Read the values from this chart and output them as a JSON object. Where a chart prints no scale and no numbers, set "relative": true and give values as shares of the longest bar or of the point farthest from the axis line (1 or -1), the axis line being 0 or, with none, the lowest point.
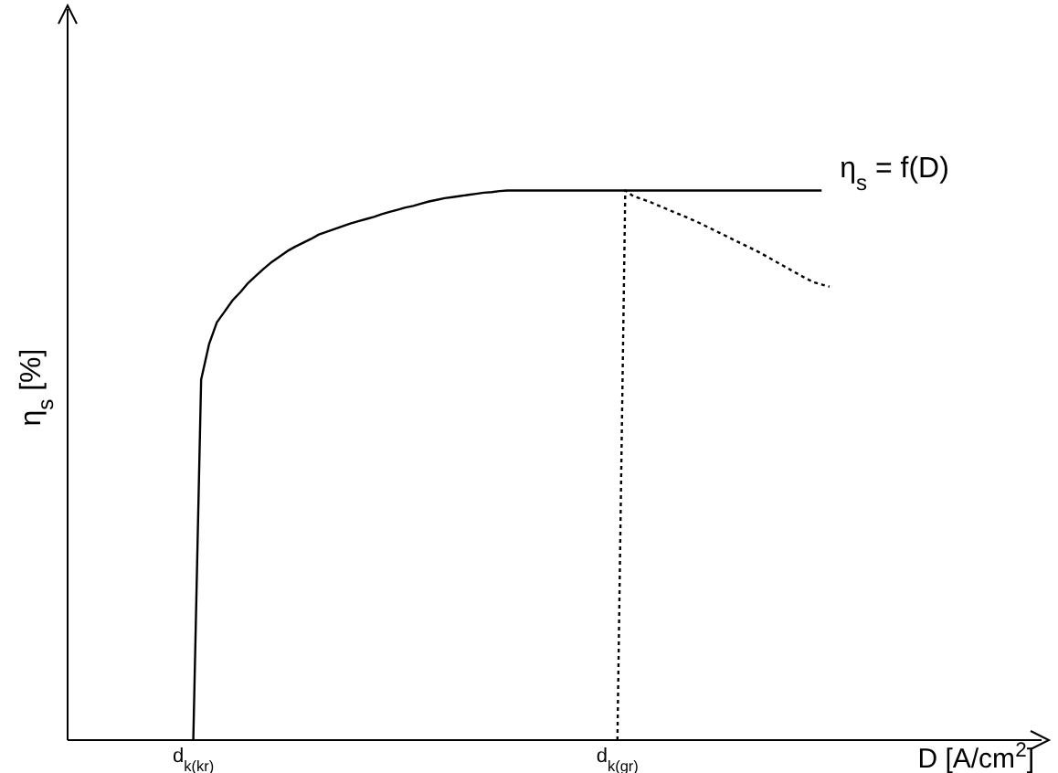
{
  "chart_data": {
    "type": "line",
    "relative": true,
    "xlabel": "D [A/cm$^{2}$]",
    "ylabel": "η$_{s}$  [%]",
    "categories": [
      null,
      null,
      null,
      null,
      null,
      null,
      null,
      null,
      null,
      null,
      null,
      null,
      null,
      null,
      null,
      null,
      "d$_{k(kr)}$",
      null,
      null,
      null,
      null,
      null,
      null,
      null,
      null,
      null,
      null,
      null,
      null,
      null,
      null,
      null,
      null,
      null,
      null,
      null,
      null,
      null,
      null,
      null,
      null,
      null,
      null,
      null,
      null,
      null,
      null,
      null,
      null,
      null,
      null,
      null,
      null,
      null,
      null,
      null,
      null,
      null,
      null,
      null,
      null,
      null,
      null,
      null,
      null,
      null,
      null,
      null,
      null,
      null,
      "d$_{k(gr)}$",
      null,
      null,
      null,
      null,
      null,
      null,
      null,
      null,
      null,
      null,
      null,
      null,
      null,
      null,
      null,
      null,
      null,
      null,
      null,
      null,
      null,
      null,
      null,
      null,
      null,
      null,
      null,
      null,
      null,
      null,
      null,
      null,
      null,
      null,
      null,
      null,
      null,
      null,
      null,
      null,
      null,
      null,
      null,
      null,
      null,
      null,
      null,
      null,
      null,
      null,
      null,
      null,
      null,
      null
    ],
    "series": [
      {
        "color": "#000000",
        "line_style": "solid",
        "values": [
          null,
          null,
          null,
          null,
          null,
          null,
          null,
          null,
          null,
          null,
          null,
          null,
          null,
          null,
          null,
          null,
          0,
          0.656,
          0.72,
          0.76,
          0.78,
          0.8,
          0.815,
          0.832,
          0.845,
          0.858,
          0.87,
          0.88,
          0.89,
          0.898,
          0.905,
          0.912,
          0.92,
          0.925,
          0.93,
          0.935,
          0.94,
          0.944,
          0.948,
          0.952,
          0.957,
          0.961,
          0.965,
          0.969,
          0.972,
          0.976,
          0.98,
          0.983,
          0.986,
          0.988,
          0.99,
          0.992,
          0.994,
          0.996,
          0.997,
          0.999,
          1,
          1,
          1,
          1,
          1,
          1,
          1,
          1,
          1,
          1,
          1,
          1,
          1,
          1,
          1,
          1,
          1,
          1,
          1,
          1,
          1,
          1,
          1,
          1,
          1,
          1,
          1,
          1,
          1,
          1,
          1,
          1,
          1,
          1,
          1,
          1,
          1,
          1,
          1,
          1,
          1,
          null,
          null,
          null,
          null,
          null,
          null,
          null,
          null,
          null,
          null,
          null,
          null,
          null,
          null,
          null,
          null,
          null,
          null,
          null,
          null,
          null,
          null,
          null,
          null,
          null,
          null,
          null,
          null
        ]
      },
      {
        "color": "#000000",
        "line_style": "dotted",
        "values": [
          null,
          null,
          null,
          null,
          null,
          null,
          null,
          null,
          null,
          null,
          null,
          null,
          null,
          null,
          null,
          null,
          null,
          null,
          null,
          null,
          null,
          null,
          null,
          null,
          null,
          null,
          null,
          null,
          null,
          null,
          null,
          null,
          null,
          null,
          null,
          null,
          null,
          null,
          null,
          null,
          null,
          null,
          null,
          null,
          null,
          null,
          null,
          null,
          null,
          null,
          null,
          null,
          null,
          null,
          null,
          null,
          null,
          null,
          null,
          null,
          null,
          null,
          null,
          null,
          null,
          null,
          null,
          null,
          null,
          null,
          0,
          1,
          0.99,
          0.985,
          0.98,
          0.974,
          0.968,
          0.962,
          0.956,
          0.95,
          0.944,
          0.937,
          0.93,
          0.923,
          0.916,
          0.909,
          0.902,
          0.895,
          0.888,
          0.88,
          0.872,
          0.864,
          0.856,
          0.848,
          0.84,
          0.833,
          0.829,
          0.825,
          null,
          null,
          null,
          null,
          null,
          null,
          null,
          null,
          null,
          null,
          null,
          null,
          null,
          null,
          null,
          null,
          null,
          null,
          null,
          null,
          null,
          null,
          null,
          null,
          null,
          null,
          null
        ]
      }
    ],
    "annotations": [
      "η$_{s}$ = f(D)"
    ],
    "marker": "none"
  }
}
